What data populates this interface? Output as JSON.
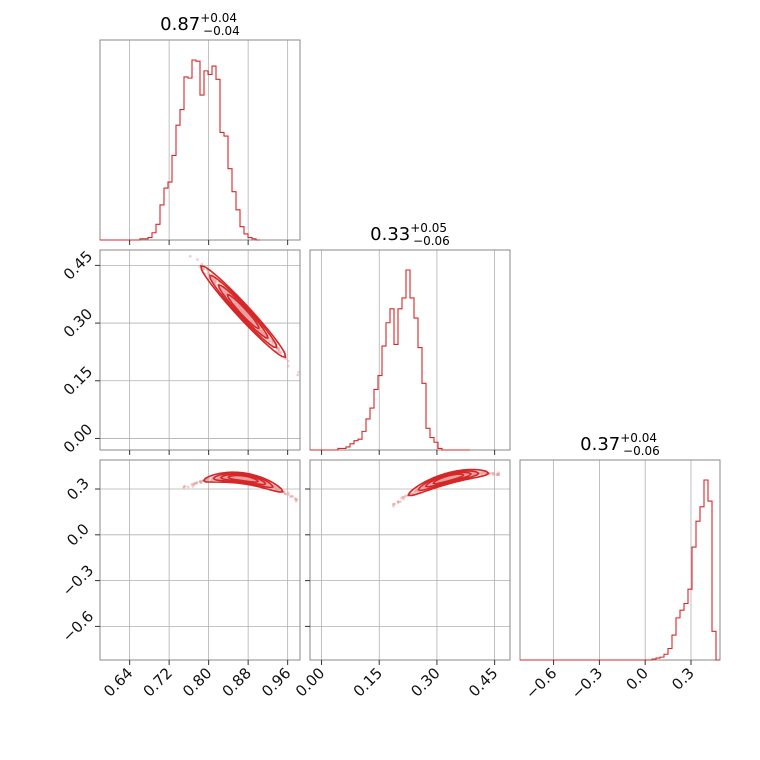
{
  "chart_data": {
    "type": "corner",
    "colors": {
      "line": "#d62728",
      "points": "#e8a0a0",
      "grid": "#b0b0b0",
      "frame": "#8a8a8a"
    },
    "grid": true,
    "parameters": [
      {
        "range": [
          0.58,
          0.985
        ],
        "ticks": [
          0.64,
          0.72,
          0.8,
          0.88,
          0.96
        ],
        "tick_labels": [
          "0.64",
          "0.72",
          "0.80",
          "0.88",
          "0.96"
        ],
        "title": {
          "median": "0.87",
          "plus": "+0.04",
          "minus": "−0.04"
        },
        "histogram": {
          "edges_start": 0.58,
          "bin_width": 0.0081,
          "counts": [
            0,
            0,
            0,
            0,
            0,
            0,
            0,
            0,
            0,
            0,
            1,
            1,
            2,
            6,
            13,
            29,
            43,
            48,
            70,
            95,
            108,
            135,
            134,
            149,
            148,
            120,
            140,
            137,
            144,
            133,
            89,
            86,
            59,
            40,
            25,
            11,
            5,
            2,
            1,
            0
          ]
        }
      },
      {
        "range": [
          -0.03,
          0.49
        ],
        "ticks": [
          0.0,
          0.15,
          0.3,
          0.45
        ],
        "tick_labels": [
          "0.00",
          "0.15",
          "0.30",
          "0.45"
        ],
        "title": {
          "median": "0.33",
          "plus": "+0.05",
          "minus": "−0.06"
        },
        "histogram": {
          "edges_start": -0.03,
          "bin_width": 0.0104,
          "counts": [
            0,
            0,
            0,
            0,
            0,
            0,
            0,
            1,
            1,
            2,
            4,
            6,
            7,
            12,
            20,
            27,
            39,
            48,
            67,
            82,
            91,
            68,
            91,
            98,
            116,
            98,
            85,
            66,
            43,
            14,
            8,
            5,
            1,
            0,
            0,
            0,
            0,
            0,
            0,
            0
          ]
        }
      },
      {
        "range": [
          -0.82,
          0.49
        ],
        "ticks": [
          -0.6,
          -0.3,
          0.0,
          0.3
        ],
        "tick_labels": [
          "−0.6",
          "−0.3",
          "0.0",
          "0.3"
        ],
        "title": {
          "median": "0.37",
          "plus": "+0.04",
          "minus": "−0.06"
        },
        "histogram": {
          "edges_start": -0.82,
          "bin_width": 0.0262,
          "counts": [
            0,
            0,
            0,
            0,
            0,
            0,
            0,
            0,
            0,
            0,
            0,
            0,
            0,
            0,
            0,
            0,
            0,
            0,
            0,
            0,
            0,
            0,
            0,
            0,
            0,
            0,
            0,
            0,
            0,
            0,
            0,
            0,
            0,
            1,
            2,
            3,
            6,
            12,
            26,
            44,
            52,
            59,
            74,
            118,
            145,
            160,
            188,
            166,
            30,
            0
          ]
        }
      }
    ],
    "y_ticks": {
      "row1": {
        "ticks": [
          0.0,
          0.15,
          0.3,
          0.45
        ],
        "tick_labels": [
          "0.00",
          "0.15",
          "0.30",
          "0.45"
        ]
      },
      "row2": {
        "ticks": [
          -0.6,
          -0.3,
          0.0,
          0.3
        ],
        "tick_labels": [
          "−0.6",
          "−0.3",
          "0.0",
          "0.3"
        ]
      }
    },
    "pairs": [
      {
        "x_param": 0,
        "y_param": 1,
        "center": [
          0.87,
          0.33
        ],
        "major_dir": [
          0.12,
          -0.15
        ],
        "half_len": [
          0.35,
          0.55,
          0.75,
          0.95,
          1.05
        ],
        "minor": 0.012
      },
      {
        "x_param": 0,
        "y_param": 2,
        "center": [
          0.85,
          0.38
        ],
        "curve_ref": "a",
        "half_len": [
          0.35,
          0.55,
          0.75,
          0.95,
          1.05
        ],
        "minor": 0.018
      },
      {
        "x_param": 1,
        "y_param": 2,
        "center": [
          0.33,
          0.37
        ],
        "curve_ref": "b",
        "half_len": [
          0.35,
          0.55,
          0.75,
          0.95,
          1.05
        ],
        "minor": 0.018
      }
    ]
  }
}
